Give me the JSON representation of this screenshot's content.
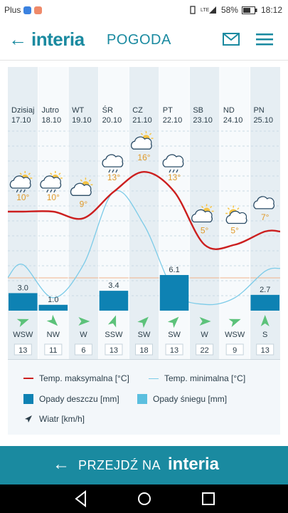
{
  "status": {
    "carrier": "Plus",
    "battery": "58%",
    "time": "18:12"
  },
  "header": {
    "logo": "interia",
    "section": "POGODA"
  },
  "days": [
    {
      "day": "Dzisiaj",
      "date": "17.10",
      "tmax": "10°",
      "rain": 3.0,
      "rain_label": "3.0",
      "wind_dir": "WSW",
      "wind_speed": "13",
      "icon": "partly-sunny-rain-icon"
    },
    {
      "day": "Jutro",
      "date": "18.10",
      "tmax": "10°",
      "rain": 1.0,
      "rain_label": "1.0",
      "wind_dir": "NW",
      "wind_speed": "11",
      "icon": "partly-sunny-rain-icon"
    },
    {
      "day": "WT",
      "date": "19.10",
      "tmax": "9°",
      "rain": 0,
      "rain_label": "",
      "wind_dir": "W",
      "wind_speed": "6",
      "icon": "partly-sunny-icon"
    },
    {
      "day": "ŚR",
      "date": "20.10",
      "tmax": "13°",
      "rain": 3.4,
      "rain_label": "3.4",
      "wind_dir": "SSW",
      "wind_speed": "13",
      "icon": "rain-cloud-icon"
    },
    {
      "day": "CZ",
      "date": "21.10",
      "tmax": "16°",
      "rain": 0,
      "rain_label": "",
      "wind_dir": "SW",
      "wind_speed": "18",
      "icon": "partly-sunny-icon"
    },
    {
      "day": "PT",
      "date": "22.10",
      "tmax": "13°",
      "rain": 6.1,
      "rain_label": "6.1",
      "wind_dir": "SW",
      "wind_speed": "13",
      "icon": "rain-cloud-icon"
    },
    {
      "day": "SB",
      "date": "23.10",
      "tmax": "5°",
      "rain": 0,
      "rain_label": "",
      "wind_dir": "W",
      "wind_speed": "22",
      "icon": "partly-sunny-icon"
    },
    {
      "day": "ND",
      "date": "24.10",
      "tmax": "5°",
      "rain": 0,
      "rain_label": "",
      "wind_dir": "WSW",
      "wind_speed": "9",
      "icon": "sunny-icon"
    },
    {
      "day": "PN",
      "date": "25.10",
      "tmax": "7°",
      "rain": 2.7,
      "rain_label": "2.7",
      "wind_dir": "S",
      "wind_speed": "13",
      "icon": "cloud-icon"
    }
  ],
  "tmin_values": [
    2,
    -3,
    2,
    13,
    8,
    -2,
    -4,
    -3,
    1
  ],
  "legend": {
    "tmax": "Temp. maksymalna [°C]",
    "tmin": "Temp. minimalna [°C]",
    "rain": "Opady deszczu [mm]",
    "snow": "Opady śniegu [mm]",
    "wind": "Wiatr [km/h]"
  },
  "colors": {
    "tmax": "#cc1f1f",
    "tmin": "#7ccbe8",
    "rain": "#0e82b3",
    "snow": "#5bbfdf",
    "accent": "#1a8aa0",
    "tdot": "#e09a2a"
  },
  "footer": {
    "label": "PRZEJDŹ NA",
    "logo": "interia"
  }
}
